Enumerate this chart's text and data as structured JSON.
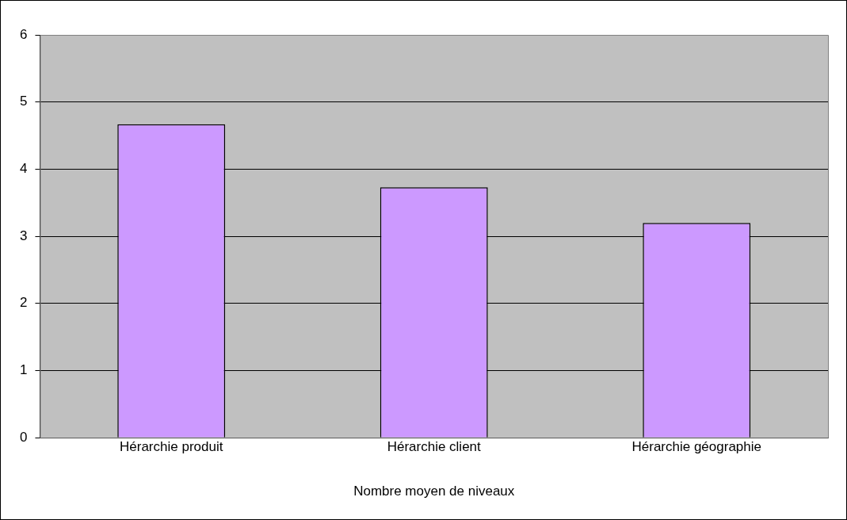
{
  "chart_data": {
    "type": "bar",
    "xlabel": "Nombre moyen de niveaux",
    "categories": [
      "Hérarchie produit",
      "Hérarchie client",
      "Hérarchie géographie"
    ],
    "values": [
      4.67,
      3.73,
      3.2
    ],
    "color": "#cc99ff",
    "ylim": [
      0,
      6
    ],
    "yticks": [
      0,
      1,
      2,
      3,
      4,
      5,
      6
    ],
    "grid": "y",
    "legend": false
  }
}
